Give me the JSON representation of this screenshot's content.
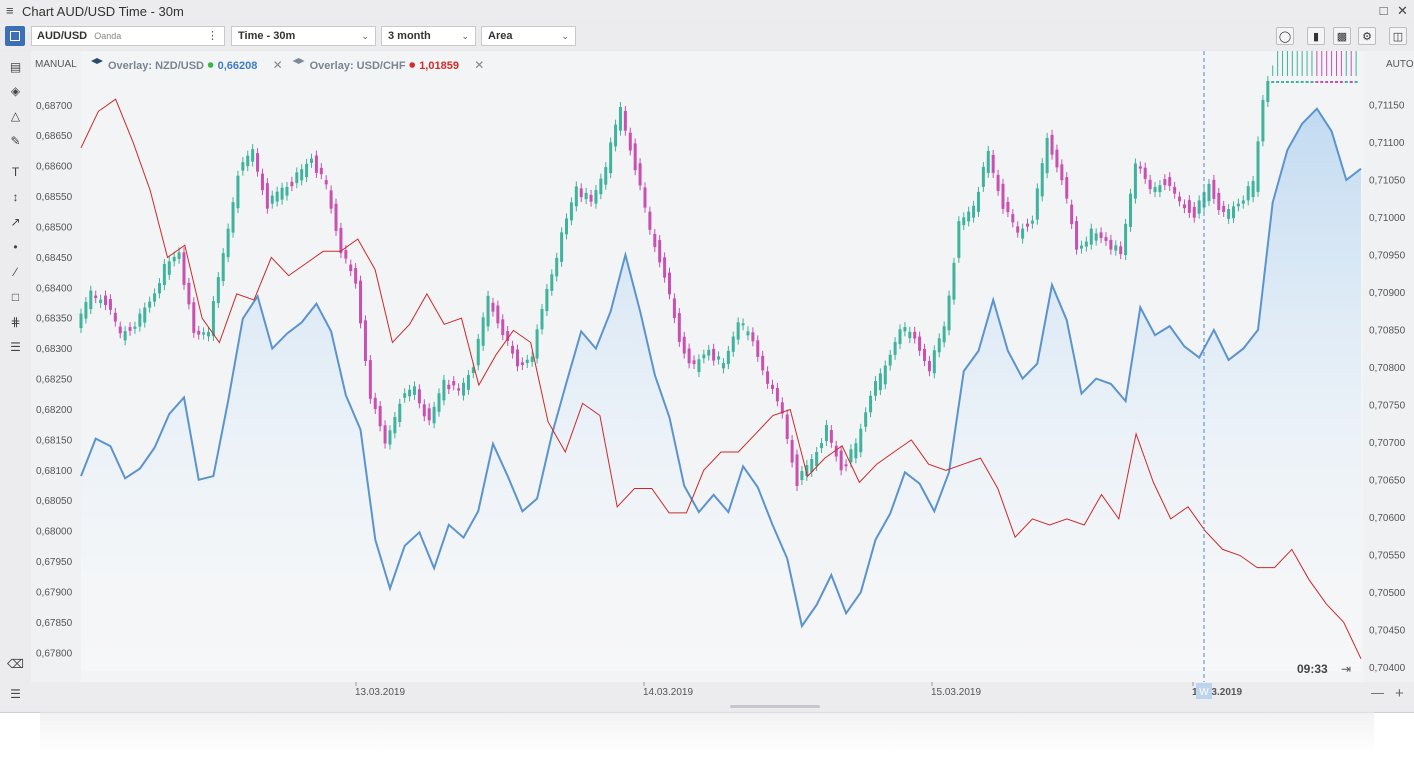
{
  "window": {
    "title": "Chart AUD/USD Time - 30m"
  },
  "toolbar": {
    "symbol": "AUD/USD",
    "provider": "Oanda",
    "timeframe": "Time - 30m",
    "range": "3 month",
    "chart_type": "Area"
  },
  "overlays": [
    {
      "label": "Overlay: NZD/USD",
      "value": "0,66208",
      "dot_color": "#3bb54a",
      "value_color": "#3f7cc4"
    },
    {
      "label": "Overlay: USD/CHF",
      "value": "1,01859",
      "dot_color": "#d42a2a",
      "value_color": "#d42a2a"
    }
  ],
  "scale_left_mode": "MANUAL",
  "scale_right_mode": "AUTO",
  "cursor_time": "09:33",
  "week_badge": "W",
  "colors": {
    "area_line": "#5b94cc",
    "area_fill": "#bfd9f1",
    "overlay2_line": "#cc2a2a",
    "candle_up": "#3fb39b",
    "candle_down": "#c94fb0"
  },
  "chart_data": {
    "type": "area",
    "title": "",
    "x_ticks": [
      "13.03.2019",
      "14.03.2019",
      "15.03.2019",
      "18.03.2019"
    ],
    "left_axis": {
      "ylim": [
        0.6777,
        0.6874
      ],
      "ticks": [
        "0,68700",
        "0,68650",
        "0,68600",
        "0,68550",
        "0,68500",
        "0,68450",
        "0,68400",
        "0,68350",
        "0,68300",
        "0,68250",
        "0,68200",
        "0,68150",
        "0,68100",
        "0,68050",
        "0,68000",
        "0,67950",
        "0,67900",
        "0,67850",
        "0,67800"
      ]
    },
    "right_axis": {
      "ylim": [
        0.70395,
        0.71182
      ],
      "ticks": [
        "0,71150",
        "0,71100",
        "0,71050",
        "0,71000",
        "0,70950",
        "0,70900",
        "0,70850",
        "0,70800",
        "0,70750",
        "0,70700",
        "0,70650",
        "0,70600",
        "0,70550",
        "0,70500",
        "0,70450",
        "0,70400"
      ]
    },
    "series": [
      {
        "name": "AUD/USD",
        "kind": "area",
        "axis": "right",
        "values": [
          0.70655,
          0.70705,
          0.70695,
          0.70652,
          0.70665,
          0.70693,
          0.70738,
          0.7076,
          0.7065,
          0.70655,
          0.70755,
          0.70865,
          0.70895,
          0.70825,
          0.70845,
          0.7086,
          0.70885,
          0.70848,
          0.70763,
          0.70717,
          0.7057,
          0.70505,
          0.70562,
          0.7058,
          0.70532,
          0.7059,
          0.70573,
          0.70608,
          0.70698,
          0.70655,
          0.70608,
          0.70625,
          0.7071,
          0.7078,
          0.70848,
          0.70825,
          0.70875,
          0.7095,
          0.70875,
          0.7079,
          0.70733,
          0.70642,
          0.70607,
          0.7063,
          0.70607,
          0.70668,
          0.7064,
          0.7059,
          0.70545,
          0.70455,
          0.70483,
          0.70523,
          0.70472,
          0.705,
          0.7057,
          0.70605,
          0.7066,
          0.70645,
          0.70608,
          0.7066,
          0.70795,
          0.70822,
          0.7089,
          0.70822,
          0.70785,
          0.70805,
          0.7091,
          0.70863,
          0.70765,
          0.70785,
          0.70778,
          0.70755,
          0.7088,
          0.70843,
          0.70855,
          0.70828,
          0.70813,
          0.7085,
          0.7081,
          0.70825,
          0.7085,
          0.7102,
          0.7109,
          0.71125,
          0.71145,
          0.71115,
          0.7105,
          0.71065
        ]
      },
      {
        "name": "NZD/USD",
        "kind": "line",
        "axis": "left",
        "values": [
          0.6863,
          0.6869,
          0.6871,
          0.6864,
          0.6856,
          0.6845,
          0.6847,
          0.6835,
          0.6831,
          0.6839,
          0.6838,
          0.6845,
          0.6842,
          0.6844,
          0.6846,
          0.6846,
          0.6848,
          0.6843,
          0.6831,
          0.6834,
          0.6839,
          0.6834,
          0.6835,
          0.6824,
          0.6829,
          0.6833,
          0.6831,
          0.6818,
          0.6813,
          0.6821,
          0.6819,
          0.6804,
          0.6807,
          0.6807,
          0.6803,
          0.6803,
          0.681,
          0.6813,
          0.6813,
          0.6816,
          0.6819,
          0.682,
          0.6809,
          0.6812,
          0.6814,
          0.6808,
          0.6811,
          0.6813,
          0.6815,
          0.6811,
          0.681,
          0.6811,
          0.6812,
          0.6807,
          0.6799,
          0.6802,
          0.6801,
          0.6802,
          0.6801,
          0.6806,
          0.6802,
          0.6816,
          0.6808,
          0.6802,
          0.6804,
          0.68,
          0.6797,
          0.6796,
          0.6794,
          0.6794,
          0.6797,
          0.6792,
          0.6788,
          0.6785,
          0.6779
        ]
      }
    ]
  }
}
